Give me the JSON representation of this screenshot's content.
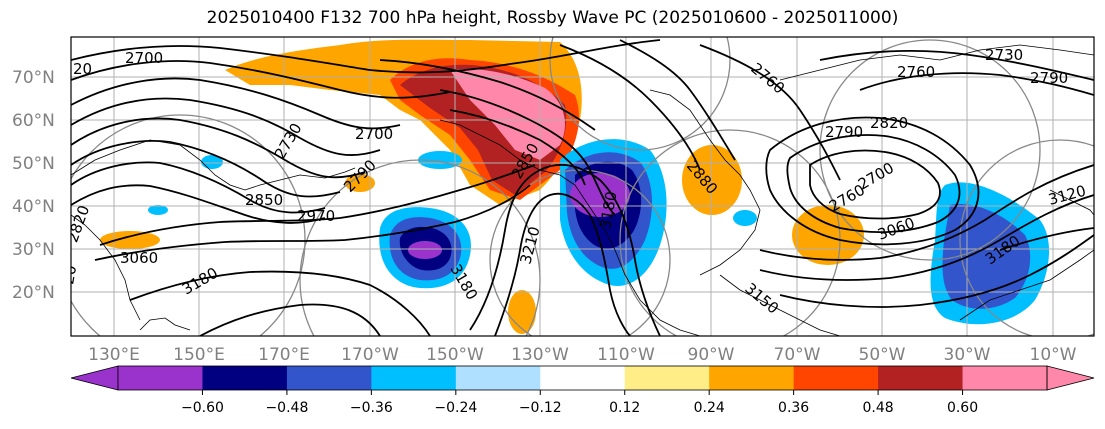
{
  "title": "2025010400 F132 700 hPa height, Rossby Wave PC (2025010600 - 2025011000)",
  "lat_labels": [
    "70°N",
    "60°N",
    "50°N",
    "40°N",
    "30°N",
    "20°N"
  ],
  "lon_labels": [
    "130°E",
    "150°E",
    "170°E",
    "170°W",
    "150°W",
    "130°W",
    "110°W",
    "90°W",
    "70°W",
    "50°W",
    "30°W",
    "10°W"
  ],
  "contour_labels": [
    "20",
    "2700",
    "2730",
    "2760",
    "2730",
    "2760",
    "2790",
    "2790",
    "2820",
    "2850",
    "2970",
    "2790",
    "2700",
    "3060",
    "3180",
    "3180",
    "3210",
    "3180",
    "2880",
    "3150",
    "2760",
    "2700",
    "3060",
    "3180",
    "3120",
    "2850",
    "20",
    "2820"
  ],
  "colorbar": {
    "ticks": [
      "−0.60",
      "−0.48",
      "−0.36",
      "−0.24",
      "−0.12",
      "0.12",
      "0.24",
      "0.36",
      "0.48",
      "0.60"
    ],
    "colors": [
      "#9933cc",
      "#000080",
      "#3355cc",
      "#00bfff",
      "#b0e0ff",
      "#ffffff",
      "#ffee88",
      "#ffa500",
      "#ff4500",
      "#b22222",
      "#ff88aa",
      "#ff88aa"
    ]
  }
}
